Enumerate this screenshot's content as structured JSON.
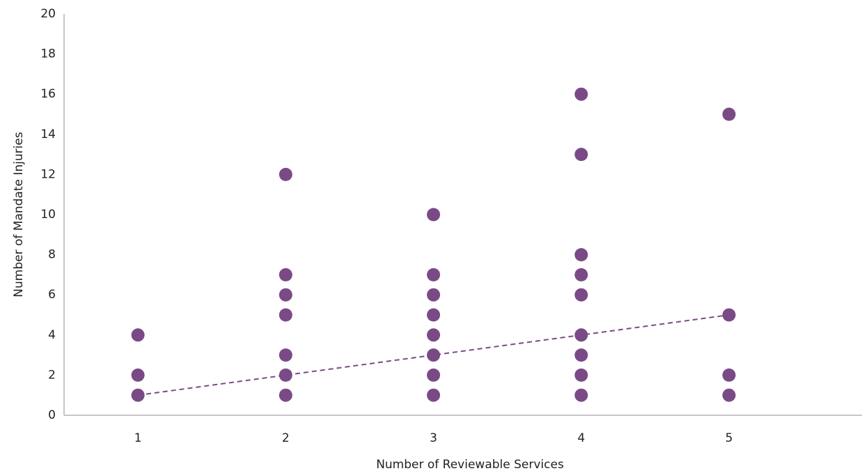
{
  "chart_data": {
    "type": "scatter",
    "title": "",
    "xlabel": "Number of Reviewable Services",
    "ylabel": "Number of Mandate Injuries",
    "xlim": [
      0.5,
      5.9
    ],
    "ylim": [
      0,
      20
    ],
    "x_ticks": [
      1,
      2,
      3,
      4,
      5
    ],
    "y_ticks": [
      0,
      2,
      4,
      6,
      8,
      10,
      12,
      14,
      16,
      18,
      20
    ],
    "grid": false,
    "legend": "none",
    "marker_color": "#7a4a86",
    "trendline_color": "#7a4a86",
    "series": [
      {
        "points": [
          {
            "x": 1,
            "y": 1
          },
          {
            "x": 1,
            "y": 2
          },
          {
            "x": 1,
            "y": 4
          },
          {
            "x": 2,
            "y": 1
          },
          {
            "x": 2,
            "y": 2
          },
          {
            "x": 2,
            "y": 3
          },
          {
            "x": 2,
            "y": 5
          },
          {
            "x": 2,
            "y": 6
          },
          {
            "x": 2,
            "y": 7
          },
          {
            "x": 2,
            "y": 12
          },
          {
            "x": 3,
            "y": 1
          },
          {
            "x": 3,
            "y": 2
          },
          {
            "x": 3,
            "y": 3
          },
          {
            "x": 3,
            "y": 4
          },
          {
            "x": 3,
            "y": 5
          },
          {
            "x": 3,
            "y": 6
          },
          {
            "x": 3,
            "y": 7
          },
          {
            "x": 3,
            "y": 10
          },
          {
            "x": 4,
            "y": 1
          },
          {
            "x": 4,
            "y": 2
          },
          {
            "x": 4,
            "y": 3
          },
          {
            "x": 4,
            "y": 4
          },
          {
            "x": 4,
            "y": 6
          },
          {
            "x": 4,
            "y": 7
          },
          {
            "x": 4,
            "y": 8
          },
          {
            "x": 4,
            "y": 13
          },
          {
            "x": 4,
            "y": 16
          },
          {
            "x": 5,
            "y": 1
          },
          {
            "x": 5,
            "y": 2
          },
          {
            "x": 5,
            "y": 5
          },
          {
            "x": 5,
            "y": 15
          }
        ]
      }
    ],
    "trendline": {
      "style": "dashed",
      "points": [
        {
          "x": 1,
          "y": 1
        },
        {
          "x": 5,
          "y": 5
        }
      ]
    }
  }
}
